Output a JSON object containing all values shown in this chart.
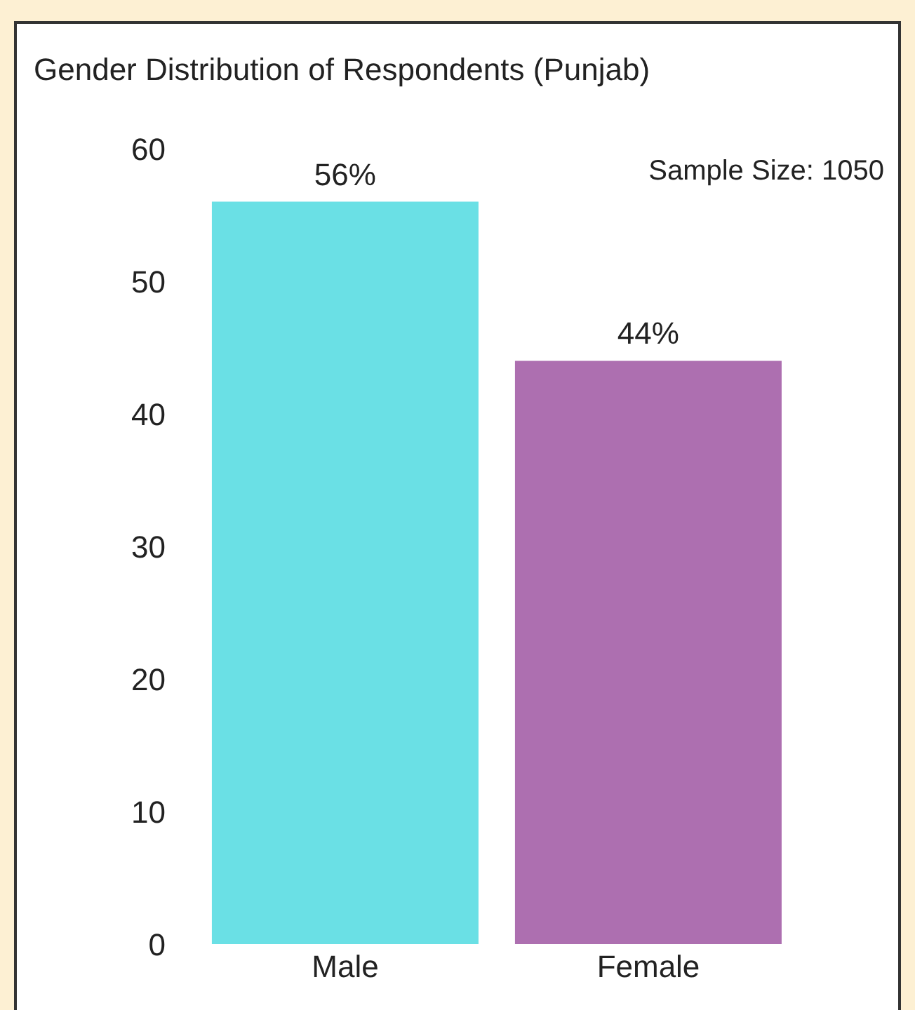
{
  "chart_data": {
    "type": "bar",
    "title": "Gender Distribution of Respondents (Punjab)",
    "categories": [
      "Male",
      "Female"
    ],
    "values": [
      56,
      44
    ],
    "colors": [
      "#6ae0e5",
      "#ad6fb0"
    ],
    "value_labels": [
      "56%",
      "44%"
    ],
    "ylim": [
      0,
      60
    ],
    "yticks": [
      0,
      10,
      20,
      30,
      40,
      50,
      60
    ],
    "annotations": [
      "Sample Size: 1050"
    ]
  }
}
